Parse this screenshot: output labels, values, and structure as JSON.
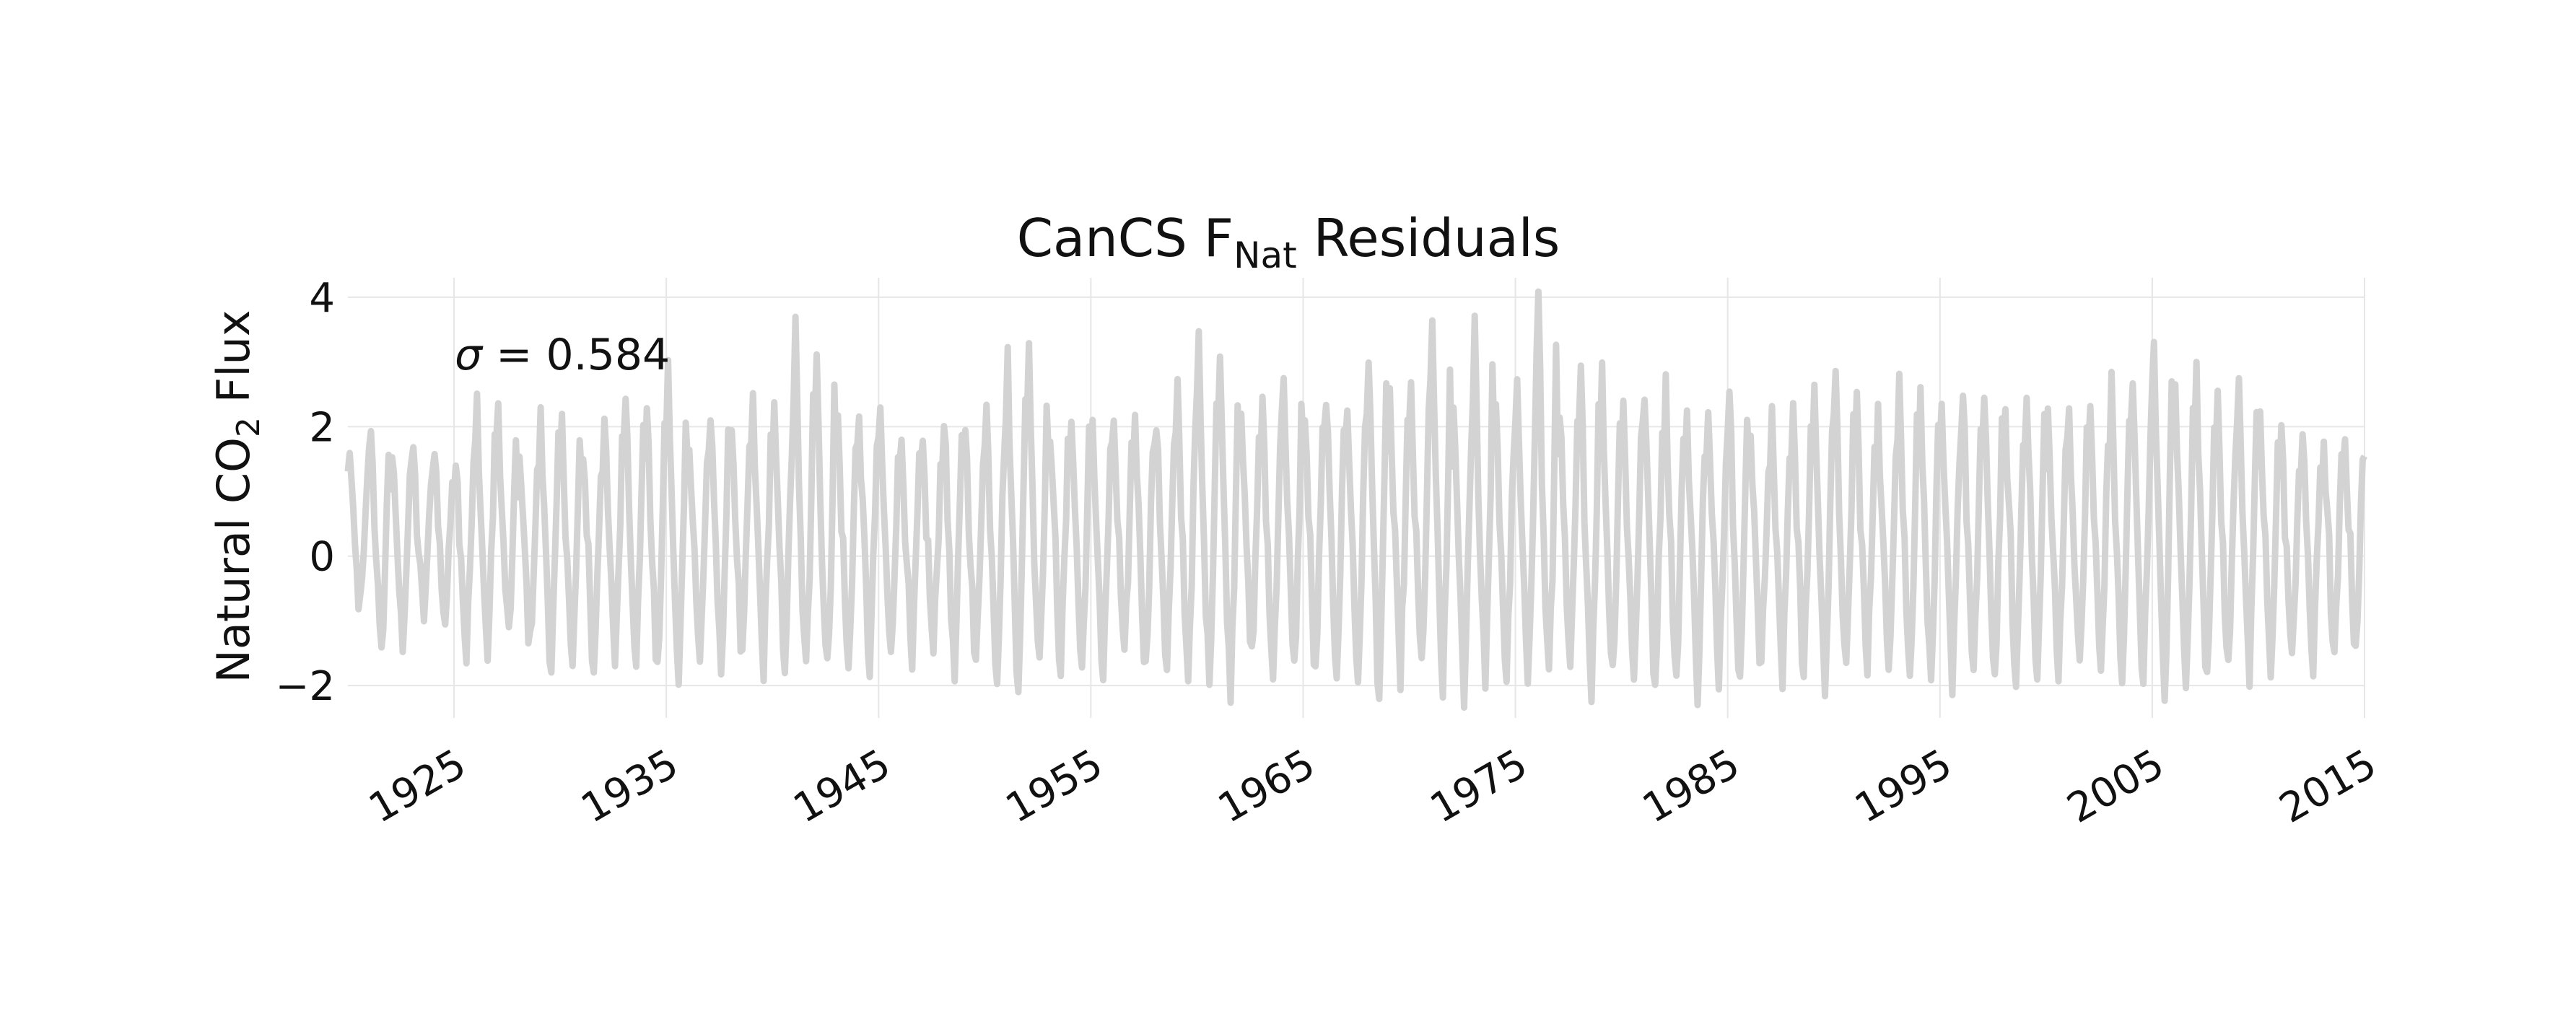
{
  "chart_data": {
    "type": "line",
    "title": {
      "prefix": "CanCS F",
      "subscript": "Nat",
      "suffix": " Residuals"
    },
    "ylabel": {
      "prefix": "Natural CO",
      "subscript": "2",
      "suffix": " Flux"
    },
    "xlabel": "",
    "xlim": [
      1920,
      2015
    ],
    "ylim": [
      -2.5,
      4.3
    ],
    "xticks": [
      1925,
      1935,
      1945,
      1955,
      1965,
      1975,
      1985,
      1995,
      2005,
      2015
    ],
    "xtick_labels": [
      "1925",
      "1935",
      "1945",
      "1955",
      "1965",
      "1975",
      "1985",
      "1995",
      "2005",
      "2015"
    ],
    "yticks": [
      -2,
      0,
      2,
      4
    ],
    "ytick_labels": [
      "−2",
      "0",
      "2",
      "4"
    ],
    "grid": true,
    "annotation": {
      "symbol": "σ",
      "text": " = 0.584"
    },
    "series": [
      {
        "color": "#d3d3d3",
        "sampling": "monthly",
        "start": 1920,
        "annual_peaks": [
          1.7,
          2.1,
          1.6,
          1.7,
          1.8,
          1.6,
          2.4,
          2.3,
          1.5,
          2.1,
          2.0,
          1.7,
          2.1,
          2.7,
          2.3,
          2.9,
          1.9,
          2.2,
          2.2,
          2.3,
          2.2,
          3.5,
          3.2,
          2.1,
          2.2,
          2.2,
          1.8,
          1.7,
          2.2,
          2.1,
          2.3,
          3.0,
          3.3,
          2.0,
          2.3,
          1.9,
          2.1,
          2.2,
          2.1,
          2.5,
          3.3,
          3.1,
          2.4,
          2.3,
          2.9,
          2.3,
          2.6,
          2.4,
          3.2,
          2.5,
          2.6,
          3.7,
          2.2,
          3.7,
          2.2,
          2.6,
          4.2,
          2.4,
          2.8,
          2.8,
          2.3,
          2.6,
          2.6,
          2.2,
          2.1,
          2.7,
          2.0,
          2.1,
          2.4,
          2.6,
          2.7,
          2.4,
          2.2,
          2.8,
          2.4,
          2.1,
          2.6,
          2.4,
          2.2,
          2.7,
          2.2,
          2.3,
          2.3,
          2.6,
          2.7,
          3.4,
          2.7,
          2.8,
          2.3,
          2.9,
          2.1,
          1.9,
          1.8,
          1.8,
          1.9,
          1.9
        ],
        "annual_troughs": [
          -0.8,
          -1.6,
          -1.3,
          -0.9,
          -1.0,
          -1.5,
          -1.5,
          -1.2,
          -1.4,
          -1.7,
          -1.8,
          -1.9,
          -1.6,
          -1.5,
          -1.9,
          -2.0,
          -1.7,
          -1.7,
          -1.7,
          -1.7,
          -1.6,
          -1.8,
          -1.8,
          -1.8,
          -1.7,
          -1.6,
          -1.8,
          -1.5,
          -1.9,
          -1.8,
          -1.8,
          -1.9,
          -1.5,
          -1.7,
          -1.8,
          -1.9,
          -1.7,
          -1.8,
          -1.7,
          -1.8,
          -1.8,
          -2.0,
          -1.6,
          -1.9,
          -1.8,
          -1.9,
          -1.7,
          -1.9,
          -2.1,
          -1.8,
          -1.7,
          -2.0,
          -2.1,
          -1.8,
          -1.9,
          -1.9,
          -1.8,
          -1.9,
          -2.0,
          -1.8,
          -1.9,
          -2.0,
          -2.0,
          -2.1,
          -1.8,
          -1.9,
          -1.8,
          -2.0,
          -1.9,
          -2.0,
          -1.9,
          -1.8,
          -1.7,
          -1.9,
          -2.0,
          -1.9,
          -2.0,
          -1.9,
          -2.1,
          -2.0,
          -1.9,
          -1.8,
          -1.8,
          -2.0,
          -1.9,
          -2.2,
          -1.9,
          -1.8,
          -1.8,
          -1.9,
          -1.8,
          -1.7,
          -1.8,
          -1.7,
          -1.4,
          -0.9
        ]
      }
    ]
  }
}
